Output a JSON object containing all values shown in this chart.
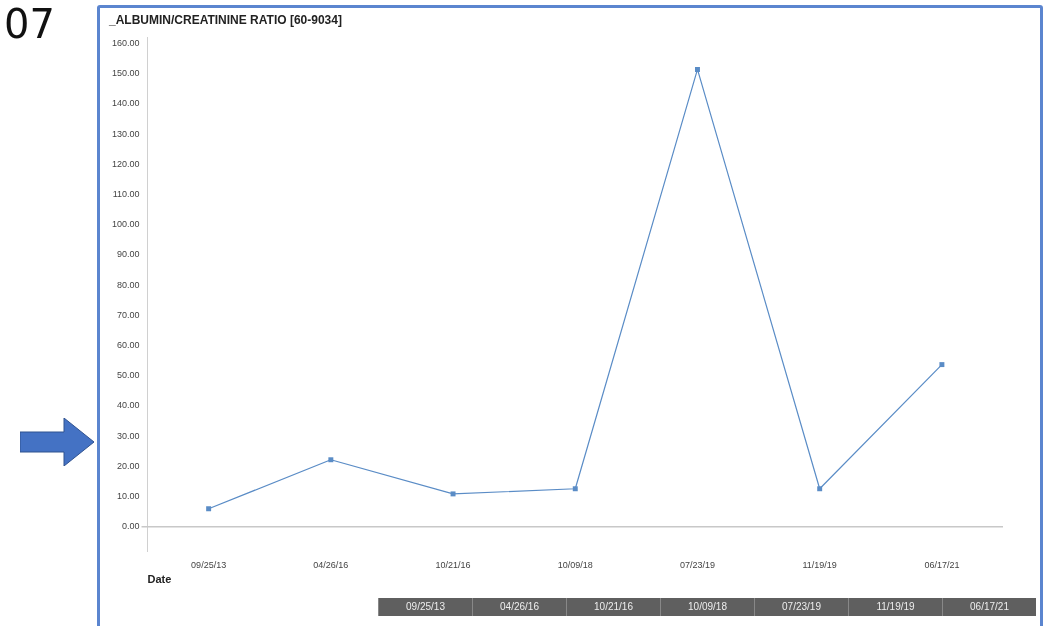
{
  "chart_data": {
    "type": "line",
    "title": "_ALBUMIN/CREATININE RATIO [60-9034]",
    "xlabel": "Date",
    "annotations": [
      "07"
    ],
    "categories": [
      "09/25/13",
      "04/26/16",
      "10/21/16",
      "10/09/18",
      "07/23/19",
      "11/19/19",
      "06/17/21"
    ],
    "series": [
      {
        "color": "#5a8cc6",
        "values": [
          6.0,
          22.2,
          10.9,
          12.6,
          151.4,
          12.6,
          53.7
        ]
      }
    ],
    "ylim": [
      -8,
      162
    ],
    "yticks": [
      {
        "value": 0,
        "label": "0.00"
      },
      {
        "value": 10,
        "label": "10.00"
      },
      {
        "value": 20,
        "label": "20.00"
      },
      {
        "value": 30,
        "label": "30.00"
      },
      {
        "value": 40,
        "label": "40.00"
      },
      {
        "value": 50,
        "label": "50.00"
      },
      {
        "value": 60,
        "label": "60.00"
      },
      {
        "value": 70,
        "label": "70.00"
      },
      {
        "value": 80,
        "label": "80.00"
      },
      {
        "value": 90,
        "label": "90.00"
      },
      {
        "value": 100,
        "label": "100.00"
      },
      {
        "value": 110,
        "label": "110.00"
      },
      {
        "value": 120,
        "label": "120.00"
      },
      {
        "value": 130,
        "label": "130.00"
      },
      {
        "value": 140,
        "label": "140.00"
      },
      {
        "value": 150,
        "label": "150.00"
      },
      {
        "value": 160,
        "label": "160.00"
      }
    ],
    "ref_lines": [
      {
        "axis": "y",
        "value": 0,
        "color": "#c8c8c8"
      }
    ],
    "grid": false,
    "legend": false,
    "marker": "square",
    "line_style": "solid"
  }
}
